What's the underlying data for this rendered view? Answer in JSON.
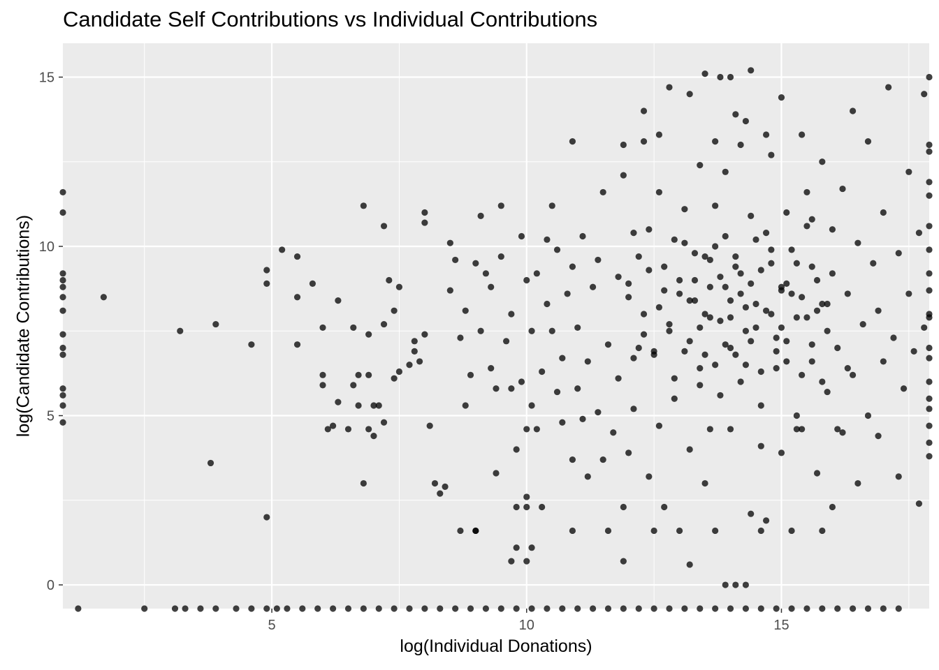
{
  "chart_data": {
    "type": "scatter",
    "title": "Candidate Self Contributions vs Individual Contributions",
    "xlabel": "log(Individual Donations)",
    "ylabel": "log(Candidate Contributions)",
    "xlim": [
      0.9,
      17.9
    ],
    "ylim": [
      -0.7,
      16.0
    ],
    "xticks": [
      5,
      10,
      15
    ],
    "yticks": [
      0,
      5,
      10,
      15
    ],
    "grid": true,
    "legend": "none",
    "point_color": "#000000",
    "panel_color": "#ebebeb",
    "grid_color": "#ffffff",
    "points": [
      [
        0.9,
        11.6
      ],
      [
        0.9,
        11.0
      ],
      [
        0.9,
        9.2
      ],
      [
        0.9,
        9.0
      ],
      [
        0.9,
        8.8
      ],
      [
        0.9,
        8.5
      ],
      [
        0.9,
        8.1
      ],
      [
        0.9,
        7.4
      ],
      [
        0.9,
        7.0
      ],
      [
        0.9,
        6.8
      ],
      [
        0.9,
        5.8
      ],
      [
        0.9,
        5.6
      ],
      [
        0.9,
        5.3
      ],
      [
        0.9,
        4.8
      ],
      [
        1.7,
        8.5
      ],
      [
        3.2,
        7.5
      ],
      [
        3.9,
        7.7
      ],
      [
        3.8,
        3.6
      ],
      [
        4.6,
        7.1
      ],
      [
        4.9,
        9.3
      ],
      [
        4.9,
        8.9
      ],
      [
        4.9,
        2.0
      ],
      [
        5.2,
        9.9
      ],
      [
        5.5,
        8.5
      ],
      [
        5.5,
        9.7
      ],
      [
        5.5,
        7.1
      ],
      [
        5.8,
        8.9
      ],
      [
        6.0,
        7.6
      ],
      [
        6.0,
        5.9
      ],
      [
        6.0,
        6.2
      ],
      [
        6.1,
        4.6
      ],
      [
        6.2,
        4.7
      ],
      [
        6.3,
        5.4
      ],
      [
        6.3,
        8.4
      ],
      [
        6.5,
        4.6
      ],
      [
        6.6,
        5.9
      ],
      [
        6.6,
        7.6
      ],
      [
        6.7,
        5.3
      ],
      [
        6.7,
        6.2
      ],
      [
        6.8,
        3.0
      ],
      [
        6.8,
        11.2
      ],
      [
        6.9,
        6.2
      ],
      [
        6.9,
        7.4
      ],
      [
        6.9,
        4.6
      ],
      [
        7.0,
        4.4
      ],
      [
        7.0,
        5.3
      ],
      [
        7.1,
        5.3
      ],
      [
        7.2,
        4.8
      ],
      [
        7.2,
        7.7
      ],
      [
        7.2,
        10.6
      ],
      [
        7.3,
        9.0
      ],
      [
        7.4,
        8.1
      ],
      [
        7.4,
        6.1
      ],
      [
        7.5,
        8.8
      ],
      [
        7.5,
        6.3
      ],
      [
        7.7,
        6.5
      ],
      [
        7.8,
        7.2
      ],
      [
        7.8,
        6.9
      ],
      [
        7.9,
        6.6
      ],
      [
        8.0,
        10.7
      ],
      [
        8.0,
        11.0
      ],
      [
        8.0,
        7.4
      ],
      [
        8.1,
        4.7
      ],
      [
        8.2,
        3.0
      ],
      [
        8.3,
        2.7
      ],
      [
        8.4,
        2.9
      ],
      [
        8.5,
        8.7
      ],
      [
        8.5,
        10.1
      ],
      [
        8.6,
        9.6
      ],
      [
        8.7,
        7.3
      ],
      [
        8.8,
        8.1
      ],
      [
        8.8,
        5.3
      ],
      [
        8.9,
        6.2
      ],
      [
        9.0,
        9.5
      ],
      [
        9.0,
        1.6
      ],
      [
        9.1,
        10.9
      ],
      [
        9.1,
        7.5
      ],
      [
        9.2,
        9.2
      ],
      [
        9.3,
        6.4
      ],
      [
        9.3,
        8.8
      ],
      [
        9.4,
        5.8
      ],
      [
        9.4,
        3.3
      ],
      [
        9.5,
        11.2
      ],
      [
        9.5,
        9.7
      ],
      [
        9.6,
        7.2
      ],
      [
        9.7,
        5.8
      ],
      [
        9.7,
        8.0
      ],
      [
        9.8,
        2.3
      ],
      [
        9.8,
        4.0
      ],
      [
        9.9,
        10.3
      ],
      [
        9.9,
        6.0
      ],
      [
        10.0,
        4.6
      ],
      [
        10.0,
        9.0
      ],
      [
        10.0,
        2.6
      ],
      [
        10.0,
        0.7
      ],
      [
        10.1,
        1.1
      ],
      [
        10.1,
        7.5
      ],
      [
        10.1,
        5.3
      ],
      [
        10.2,
        9.2
      ],
      [
        10.2,
        4.6
      ],
      [
        10.3,
        6.3
      ],
      [
        10.3,
        2.3
      ],
      [
        10.4,
        8.3
      ],
      [
        10.4,
        10.2
      ],
      [
        10.5,
        11.2
      ],
      [
        10.5,
        7.5
      ],
      [
        10.6,
        5.7
      ],
      [
        10.6,
        9.9
      ],
      [
        10.7,
        4.8
      ],
      [
        10.7,
        6.7
      ],
      [
        10.8,
        8.6
      ],
      [
        10.9,
        3.7
      ],
      [
        10.9,
        9.4
      ],
      [
        11.0,
        7.6
      ],
      [
        11.0,
        5.8
      ],
      [
        11.1,
        10.3
      ],
      [
        11.1,
        4.9
      ],
      [
        11.2,
        3.2
      ],
      [
        11.2,
        6.6
      ],
      [
        11.3,
        8.8
      ],
      [
        11.4,
        5.1
      ],
      [
        11.4,
        9.6
      ],
      [
        11.5,
        11.6
      ],
      [
        11.5,
        3.7
      ],
      [
        11.6,
        7.1
      ],
      [
        11.6,
        1.6
      ],
      [
        11.7,
        4.5
      ],
      [
        11.8,
        9.1
      ],
      [
        11.8,
        6.1
      ],
      [
        11.9,
        12.1
      ],
      [
        11.9,
        2.3
      ],
      [
        12.0,
        3.9
      ],
      [
        12.0,
        8.5
      ],
      [
        12.1,
        10.4
      ],
      [
        12.1,
        5.2
      ],
      [
        12.2,
        7.0
      ],
      [
        12.3,
        13.1
      ],
      [
        12.3,
        8.0
      ],
      [
        12.4,
        3.2
      ],
      [
        12.4,
        9.3
      ],
      [
        12.5,
        6.8
      ],
      [
        12.6,
        11.6
      ],
      [
        12.6,
        4.7
      ],
      [
        12.7,
        8.7
      ],
      [
        12.7,
        2.3
      ],
      [
        12.8,
        7.5
      ],
      [
        12.9,
        10.2
      ],
      [
        12.9,
        5.5
      ],
      [
        13.0,
        9.0
      ],
      [
        13.0,
        1.6
      ],
      [
        13.1,
        6.9
      ],
      [
        13.1,
        11.1
      ],
      [
        13.2,
        4.0
      ],
      [
        13.3,
        8.4
      ],
      [
        13.4,
        12.4
      ],
      [
        13.4,
        6.4
      ],
      [
        13.5,
        9.7
      ],
      [
        13.5,
        3.0
      ],
      [
        13.6,
        7.9
      ],
      [
        13.6,
        4.6
      ],
      [
        13.7,
        11.2
      ],
      [
        13.8,
        5.6
      ],
      [
        13.9,
        8.8
      ],
      [
        13.9,
        12.2
      ],
      [
        14.0,
        7.0
      ],
      [
        14.0,
        4.6
      ],
      [
        14.1,
        9.4
      ],
      [
        14.2,
        6.0
      ],
      [
        14.2,
        13.0
      ],
      [
        14.3,
        8.2
      ],
      [
        14.4,
        2.1
      ],
      [
        14.4,
        10.9
      ],
      [
        14.5,
        7.6
      ],
      [
        14.6,
        5.3
      ],
      [
        14.6,
        4.1
      ],
      [
        14.7,
        1.9
      ],
      [
        14.8,
        9.9
      ],
      [
        14.8,
        12.7
      ],
      [
        14.9,
        6.4
      ],
      [
        15.0,
        8.7
      ],
      [
        15.0,
        3.9
      ],
      [
        15.1,
        11.0
      ],
      [
        15.1,
        7.2
      ],
      [
        15.2,
        1.6
      ],
      [
        15.3,
        5.0
      ],
      [
        15.3,
        9.5
      ],
      [
        15.4,
        13.3
      ],
      [
        15.4,
        4.6
      ],
      [
        15.5,
        7.9
      ],
      [
        15.6,
        10.8
      ],
      [
        15.6,
        6.6
      ],
      [
        15.7,
        3.3
      ],
      [
        15.8,
        8.3
      ],
      [
        15.8,
        12.5
      ],
      [
        15.9,
        5.7
      ],
      [
        16.0,
        9.2
      ],
      [
        16.0,
        2.3
      ],
      [
        16.1,
        7.0
      ],
      [
        16.2,
        11.7
      ],
      [
        16.2,
        4.5
      ],
      [
        16.3,
        8.6
      ],
      [
        16.4,
        14.0
      ],
      [
        16.4,
        6.2
      ],
      [
        16.5,
        10.1
      ],
      [
        16.5,
        3.0
      ],
      [
        16.6,
        7.7
      ],
      [
        16.7,
        5.0
      ],
      [
        16.7,
        13.1
      ],
      [
        16.8,
        9.5
      ],
      [
        16.9,
        8.1
      ],
      [
        16.9,
        4.4
      ],
      [
        17.0,
        11.0
      ],
      [
        17.0,
        6.6
      ],
      [
        17.1,
        14.7
      ],
      [
        17.2,
        7.3
      ],
      [
        17.3,
        3.2
      ],
      [
        17.3,
        9.8
      ],
      [
        17.4,
        5.8
      ],
      [
        17.5,
        12.2
      ],
      [
        17.5,
        8.6
      ],
      [
        17.6,
        6.9
      ],
      [
        17.7,
        10.4
      ],
      [
        17.7,
        2.4
      ],
      [
        17.8,
        14.5
      ],
      [
        17.8,
        7.6
      ],
      [
        17.9,
        5.2
      ],
      [
        17.9,
        9.2
      ],
      [
        17.9,
        13.0
      ],
      [
        17.9,
        6.0
      ],
      [
        17.9,
        4.2
      ],
      [
        17.9,
        8.0
      ],
      [
        17.9,
        11.5
      ],
      [
        17.9,
        3.8
      ],
      [
        17.9,
        15.0
      ],
      [
        17.9,
        7.0
      ],
      [
        17.9,
        9.9
      ],
      [
        17.9,
        5.5
      ],
      [
        17.9,
        12.8
      ],
      [
        17.9,
        8.7
      ],
      [
        17.9,
        10.6
      ],
      [
        17.9,
        4.7
      ],
      [
        17.9,
        6.7
      ],
      [
        17.9,
        7.9
      ],
      [
        17.9,
        11.9
      ],
      [
        12.0,
        8.9
      ],
      [
        12.1,
        6.7
      ],
      [
        12.2,
        9.7
      ],
      [
        12.3,
        7.4
      ],
      [
        12.4,
        10.5
      ],
      [
        12.5,
        6.9
      ],
      [
        12.6,
        8.2
      ],
      [
        12.7,
        9.4
      ],
      [
        12.8,
        7.7
      ],
      [
        12.9,
        6.1
      ],
      [
        13.0,
        8.6
      ],
      [
        13.1,
        10.1
      ],
      [
        13.2,
        7.2
      ],
      [
        13.3,
        9.0
      ],
      [
        13.4,
        5.9
      ],
      [
        13.5,
        8.0
      ],
      [
        13.6,
        9.6
      ],
      [
        13.7,
        6.5
      ],
      [
        13.8,
        7.8
      ],
      [
        13.9,
        10.3
      ],
      [
        14.0,
        8.4
      ],
      [
        14.1,
        6.8
      ],
      [
        14.2,
        9.2
      ],
      [
        14.3,
        7.5
      ],
      [
        14.4,
        8.9
      ],
      [
        14.5,
        10.2
      ],
      [
        14.6,
        6.3
      ],
      [
        14.7,
        8.1
      ],
      [
        14.8,
        9.5
      ],
      [
        14.9,
        7.3
      ],
      [
        15.0,
        8.8
      ],
      [
        15.1,
        6.6
      ],
      [
        15.2,
        9.9
      ],
      [
        15.3,
        7.9
      ],
      [
        15.4,
        8.5
      ],
      [
        15.5,
        10.6
      ],
      [
        15.6,
        7.1
      ],
      [
        15.7,
        9.0
      ],
      [
        15.8,
        6.0
      ],
      [
        15.9,
        8.3
      ],
      [
        13.2,
        8.4
      ],
      [
        13.4,
        7.6
      ],
      [
        13.6,
        8.8
      ],
      [
        13.8,
        9.1
      ],
      [
        14.0,
        7.9
      ],
      [
        14.2,
        8.6
      ],
      [
        14.4,
        7.2
      ],
      [
        14.6,
        9.3
      ],
      [
        14.8,
        8.0
      ],
      [
        15.0,
        7.6
      ],
      [
        13.3,
        9.8
      ],
      [
        13.5,
        6.8
      ],
      [
        13.7,
        10.0
      ],
      [
        13.9,
        7.1
      ],
      [
        14.1,
        9.7
      ],
      [
        14.3,
        6.5
      ],
      [
        14.5,
        8.3
      ],
      [
        14.7,
        10.4
      ],
      [
        14.9,
        6.9
      ],
      [
        15.1,
        8.9
      ],
      [
        13.5,
        15.1
      ],
      [
        13.8,
        15.0
      ],
      [
        14.0,
        15.0
      ],
      [
        14.4,
        15.2
      ],
      [
        15.0,
        14.4
      ],
      [
        12.8,
        14.7
      ],
      [
        12.3,
        14.0
      ],
      [
        13.2,
        14.5
      ],
      [
        14.1,
        13.9
      ],
      [
        14.7,
        13.3
      ],
      [
        12.6,
        13.3
      ],
      [
        13.7,
        13.1
      ],
      [
        11.9,
        13.0
      ],
      [
        10.9,
        13.1
      ],
      [
        14.3,
        13.7
      ],
      [
        10.0,
        2.3
      ],
      [
        9.7,
        0.7
      ],
      [
        9.8,
        1.1
      ],
      [
        11.9,
        0.7
      ],
      [
        13.2,
        0.6
      ],
      [
        13.9,
        0.0
      ],
      [
        14.1,
        0.0
      ],
      [
        14.3,
        0.0
      ],
      [
        10.9,
        1.6
      ],
      [
        8.7,
        1.6
      ],
      [
        9.0,
        1.6
      ],
      [
        12.5,
        1.6
      ],
      [
        13.7,
        1.6
      ],
      [
        14.6,
        1.6
      ],
      [
        15.8,
        1.6
      ],
      [
        16.0,
        10.5
      ],
      [
        16.3,
        6.4
      ],
      [
        16.1,
        4.6
      ],
      [
        15.7,
        8.1
      ],
      [
        15.9,
        7.5
      ],
      [
        15.6,
        9.4
      ],
      [
        15.4,
        6.2
      ],
      [
        15.3,
        4.6
      ],
      [
        15.5,
        11.6
      ],
      [
        15.2,
        8.6
      ],
      [
        1.2,
        -0.7
      ],
      [
        2.5,
        -0.7
      ],
      [
        3.1,
        -0.7
      ],
      [
        3.3,
        -0.7
      ],
      [
        3.6,
        -0.7
      ],
      [
        3.9,
        -0.7
      ],
      [
        4.3,
        -0.7
      ],
      [
        4.6,
        -0.7
      ],
      [
        4.9,
        -0.7
      ],
      [
        5.1,
        -0.7
      ],
      [
        5.3,
        -0.7
      ],
      [
        5.6,
        -0.7
      ],
      [
        5.9,
        -0.7
      ],
      [
        6.2,
        -0.7
      ],
      [
        6.5,
        -0.7
      ],
      [
        6.8,
        -0.7
      ],
      [
        7.1,
        -0.7
      ],
      [
        7.4,
        -0.7
      ],
      [
        7.7,
        -0.7
      ],
      [
        8.0,
        -0.7
      ],
      [
        8.3,
        -0.7
      ],
      [
        8.6,
        -0.7
      ],
      [
        8.9,
        -0.7
      ],
      [
        9.2,
        -0.7
      ],
      [
        9.5,
        -0.7
      ],
      [
        9.8,
        -0.7
      ],
      [
        10.1,
        -0.7
      ],
      [
        10.4,
        -0.7
      ],
      [
        10.7,
        -0.7
      ],
      [
        11.0,
        -0.7
      ],
      [
        11.3,
        -0.7
      ],
      [
        11.6,
        -0.7
      ],
      [
        11.9,
        -0.7
      ],
      [
        12.2,
        -0.7
      ],
      [
        12.5,
        -0.7
      ],
      [
        12.8,
        -0.7
      ],
      [
        13.1,
        -0.7
      ],
      [
        13.4,
        -0.7
      ],
      [
        13.7,
        -0.7
      ],
      [
        14.0,
        -0.7
      ],
      [
        14.3,
        -0.7
      ],
      [
        14.6,
        -0.7
      ],
      [
        14.9,
        -0.7
      ],
      [
        15.2,
        -0.7
      ],
      [
        15.5,
        -0.7
      ],
      [
        15.8,
        -0.7
      ],
      [
        16.1,
        -0.7
      ],
      [
        16.4,
        -0.7
      ],
      [
        16.7,
        -0.7
      ],
      [
        17.0,
        -0.7
      ],
      [
        17.3,
        -0.7
      ]
    ]
  }
}
